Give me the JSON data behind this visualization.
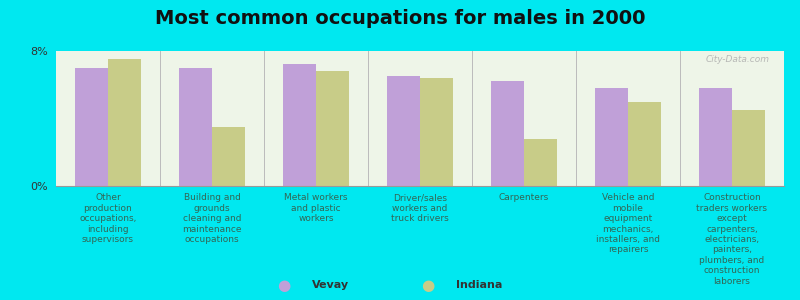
{
  "title": "Most common occupations for males in 2000",
  "categories": [
    "Other\nproduction\noccupations,\nincluding\nsupervisors",
    "Building and\ngrounds\ncleaning and\nmaintenance\noccupations",
    "Metal workers\nand plastic\nworkers",
    "Driver/sales\nworkers and\ntruck drivers",
    "Carpenters",
    "Vehicle and\nmobile\nequipment\nmechanics,\ninstallers, and\nrepairers",
    "Construction\ntraders workers\nexcept\ncarpenters,\nelectricians,\npainters,\nplumbers, and\nconstruction\nlaborers"
  ],
  "vevay_values": [
    7.0,
    7.0,
    7.2,
    6.5,
    6.2,
    5.8,
    5.8
  ],
  "indiana_values": [
    7.5,
    3.5,
    6.8,
    6.4,
    2.8,
    5.0,
    4.5
  ],
  "vevay_color": "#c0a0d8",
  "indiana_color": "#c8cc88",
  "background_color": "#00e8f0",
  "plot_bg_top": "#eef5e8",
  "plot_bg_bottom": "#f8fef0",
  "ylim": [
    0,
    8
  ],
  "ytick_labels": [
    "0%",
    "8%"
  ],
  "legend_labels": [
    "Vevay",
    "Indiana"
  ],
  "watermark": "City-Data.com",
  "title_fontsize": 14,
  "label_fontsize": 6.5,
  "tick_fontsize": 8
}
